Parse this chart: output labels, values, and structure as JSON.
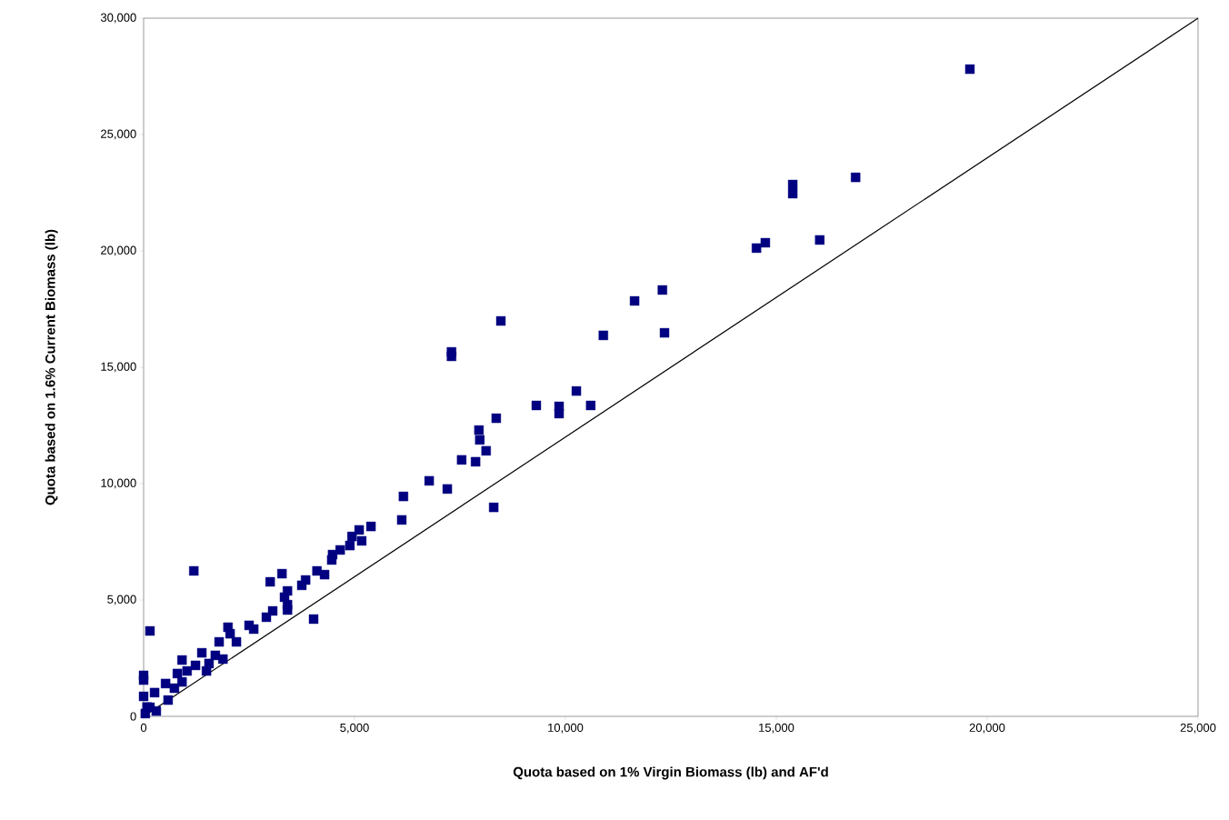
{
  "chart_data": {
    "type": "scatter",
    "xlabel": "Quota based on 1% Virgin Biomass (lb) and AF'd",
    "ylabel": "Quota based on 1.6% Current Biomass (lb)",
    "xlim": [
      0,
      25000
    ],
    "ylim": [
      0,
      30000
    ],
    "xticks": [
      0,
      {
        "value": 5000,
        "label": "5,000"
      },
      {
        "value": 10000,
        "label": "10,000"
      },
      {
        "value": 15000,
        "label": "15,000"
      },
      {
        "value": 20000,
        "label": "20,000"
      },
      {
        "value": 25000,
        "label": "25,000"
      }
    ],
    "yticks": [
      0,
      {
        "value": 5000,
        "label": "5,000"
      },
      {
        "value": 10000,
        "label": "10,000"
      },
      {
        "value": 15000,
        "label": "15,000"
      },
      {
        "value": 20000,
        "label": "20,000"
      },
      {
        "value": 25000,
        "label": "25,000"
      },
      {
        "value": 30000,
        "label": "30,000"
      }
    ],
    "grid": false,
    "marker": "square",
    "series": [
      {
        "color": "#000080",
        "x": [
          19590,
          16880,
          15390,
          15390,
          16030,
          14740,
          14530,
          12300,
          11640,
          12350,
          10900,
          8470,
          7300,
          7300,
          10260,
          9310,
          9850,
          9850,
          10600,
          8360,
          7950,
          7970,
          8120,
          7540,
          7870,
          6770,
          7200,
          8300,
          6160,
          6120,
          5390,
          5110,
          4940,
          5170,
          4890,
          4660,
          4480,
          4460,
          4110,
          4290,
          3280,
          1190,
          3000,
          3840,
          3750,
          3410,
          3340,
          3410,
          3410,
          3060,
          2910,
          4030,
          150,
          2000,
          2500,
          2610,
          2050,
          2200,
          1790,
          910,
          1380,
          1700,
          1880,
          1550,
          1230,
          1030,
          1490,
          800,
          0,
          0,
          520,
          910,
          730,
          260,
          0,
          580,
          150,
          40,
          80,
          300
        ],
        "values": [
          27810,
          23160,
          22850,
          22460,
          20470,
          20350,
          20120,
          18320,
          17850,
          16480,
          16370,
          16990,
          15660,
          15470,
          13980,
          13360,
          13320,
          13010,
          13360,
          12810,
          12300,
          11880,
          11410,
          11020,
          10940,
          10120,
          9770,
          8980,
          9450,
          8440,
          8160,
          8010,
          7730,
          7540,
          7340,
          7150,
          6950,
          6720,
          6250,
          6090,
          6130,
          6250,
          5780,
          5860,
          5630,
          5390,
          5120,
          4800,
          4570,
          4530,
          4260,
          4180,
          3670,
          3830,
          3910,
          3750,
          3550,
          3200,
          3200,
          2420,
          2730,
          2620,
          2460,
          2270,
          2190,
          1950,
          1950,
          1840,
          1760,
          1560,
          1410,
          1480,
          1210,
          1020,
          860,
          700,
          390,
          120,
          400,
          230
        ]
      },
      {
        "type": "line",
        "color": "#000000",
        "marker": "none",
        "line_style": "solid",
        "x": [
          0,
          25000
        ],
        "values": [
          0,
          30000
        ]
      }
    ]
  }
}
